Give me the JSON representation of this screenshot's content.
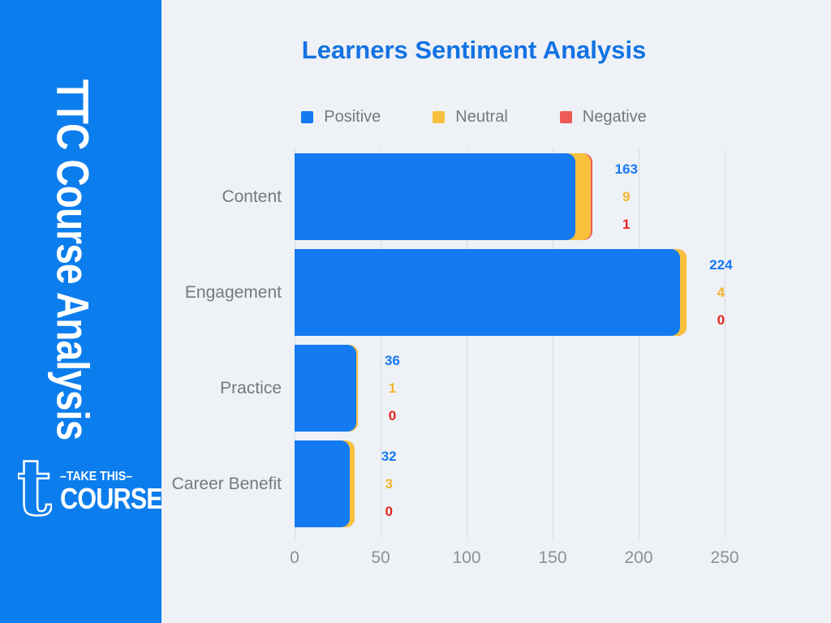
{
  "sidebar": {
    "bg_color": "#0c7ded",
    "title": "TTC Course Analysis",
    "logo": {
      "glyph": "t",
      "line1": "–TAKE THIS–",
      "line2": "COURSE"
    }
  },
  "header": {
    "title": "Learners Sentiment Analysis",
    "title_color": "#1372e4"
  },
  "chart_data": {
    "type": "bar",
    "orientation": "horizontal",
    "stacked": true,
    "title": "Learners Sentiment Analysis",
    "categories": [
      "Content",
      "Engagement",
      "Practice",
      "Career Benefit"
    ],
    "series": [
      {
        "name": "Positive",
        "color": "#147af2",
        "label_color": "#1777f2",
        "values": [
          163,
          224,
          36,
          32
        ]
      },
      {
        "name": "Neutral",
        "color": "#f8c03c",
        "label_color": "#f1b42c",
        "values": [
          9,
          4,
          1,
          3
        ]
      },
      {
        "name": "Negative",
        "color": "#ec5b57",
        "label_color": "#e3241d",
        "values": [
          1,
          0,
          0,
          0
        ]
      }
    ],
    "xlabel": "",
    "ylabel": "",
    "xlim": [
      0,
      250
    ],
    "xticks": [
      0,
      50,
      100,
      150,
      200,
      250
    ],
    "grid": true,
    "legend_position": "top",
    "value_labels": true
  }
}
